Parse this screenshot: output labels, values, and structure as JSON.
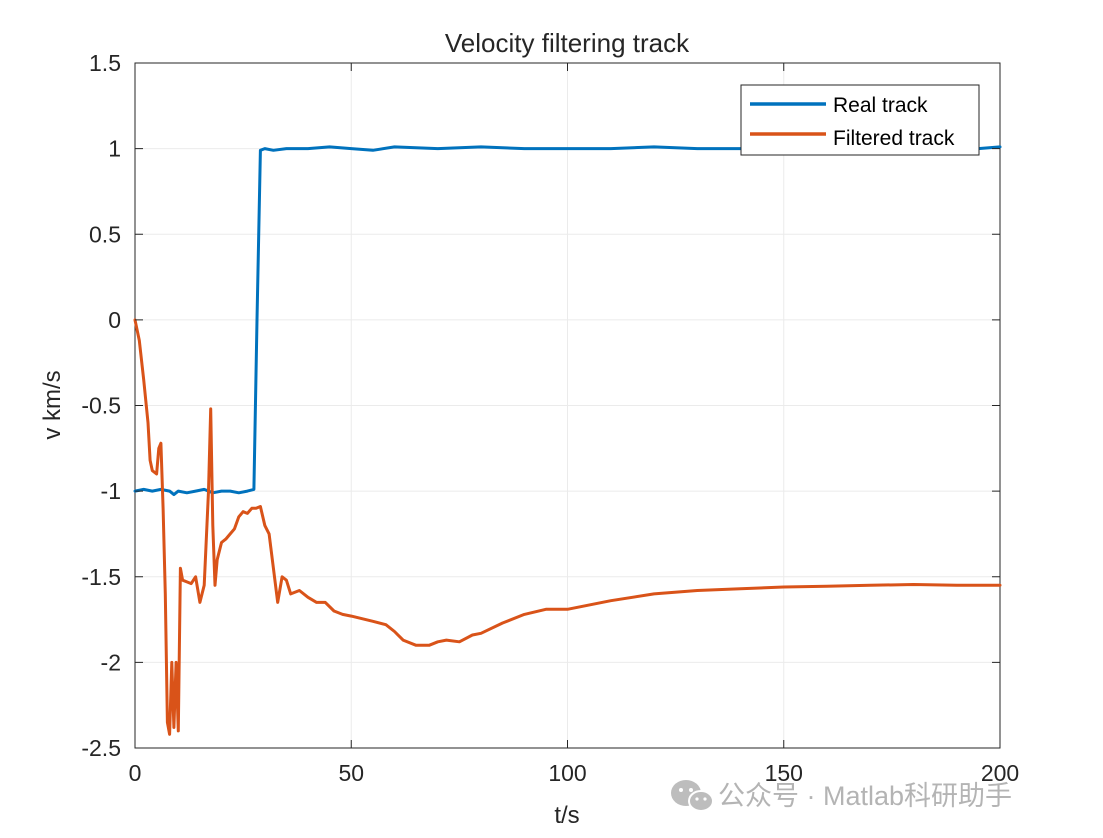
{
  "chart_data": {
    "type": "line",
    "title": "Velocity filtering track",
    "xlabel": "t/s",
    "ylabel": "v km/s",
    "xlim": [
      0,
      200
    ],
    "ylim": [
      -2.5,
      1.5
    ],
    "xticks": [
      0,
      50,
      100,
      150,
      200
    ],
    "xtick_labels": [
      "0",
      "50",
      "100",
      "150",
      "200"
    ],
    "yticks": [
      -2.5,
      -2,
      -1.5,
      -1,
      -0.5,
      0,
      0.5,
      1,
      1.5
    ],
    "ytick_labels": [
      "-2.5",
      "-2",
      "-1.5",
      "-1",
      "-0.5",
      "0",
      "0.5",
      "1",
      "1.5"
    ],
    "grid": true,
    "legend_position": "top-right",
    "series": [
      {
        "name": "Real track",
        "color": "#0072BD",
        "x": [
          0,
          2,
          4,
          6,
          8,
          9,
          10,
          12,
          14,
          16,
          18,
          20,
          22,
          24,
          26,
          27.5,
          28.2,
          29,
          30,
          32,
          35,
          40,
          45,
          50,
          55,
          60,
          70,
          80,
          90,
          100,
          110,
          120,
          130,
          140,
          150,
          160,
          170,
          180,
          190,
          195,
          200
        ],
        "y": [
          -1.0,
          -0.99,
          -1.0,
          -0.99,
          -1.0,
          -1.02,
          -1.0,
          -1.01,
          -1.0,
          -0.99,
          -1.01,
          -1.0,
          -1.0,
          -1.01,
          -1.0,
          -0.99,
          0.0,
          0.99,
          1.0,
          0.99,
          1.0,
          1.0,
          1.01,
          1.0,
          0.99,
          1.01,
          1.0,
          1.01,
          1.0,
          1.0,
          1.0,
          1.01,
          1.0,
          1.0,
          1.0,
          1.0,
          1.01,
          1.0,
          1.0,
          1.0,
          1.01
        ]
      },
      {
        "name": "Filtered track",
        "color": "#D95319",
        "x": [
          0,
          1,
          2,
          3,
          3.5,
          4,
          5,
          5.5,
          6,
          6.5,
          7,
          7.5,
          8,
          8.5,
          9,
          9.5,
          10,
          10.5,
          11,
          12,
          13,
          14,
          15,
          16,
          17,
          17.5,
          18,
          18.5,
          19,
          20,
          21,
          22,
          23,
          24,
          25,
          26,
          27,
          28,
          29,
          30,
          31,
          32,
          33,
          34,
          35,
          36,
          38,
          40,
          42,
          44,
          46,
          48,
          50,
          55,
          58,
          60,
          62,
          65,
          68,
          70,
          72,
          75,
          78,
          80,
          85,
          90,
          95,
          100,
          110,
          120,
          130,
          140,
          150,
          160,
          170,
          180,
          190,
          200
        ],
        "y": [
          0.0,
          -0.12,
          -0.35,
          -0.6,
          -0.82,
          -0.88,
          -0.9,
          -0.75,
          -0.72,
          -1.1,
          -1.6,
          -2.35,
          -2.42,
          -2.0,
          -2.38,
          -2.0,
          -2.4,
          -1.45,
          -1.52,
          -1.53,
          -1.54,
          -1.5,
          -1.65,
          -1.55,
          -1.0,
          -0.52,
          -1.2,
          -1.55,
          -1.4,
          -1.3,
          -1.28,
          -1.25,
          -1.22,
          -1.15,
          -1.12,
          -1.13,
          -1.1,
          -1.1,
          -1.09,
          -1.2,
          -1.25,
          -1.45,
          -1.65,
          -1.5,
          -1.52,
          -1.6,
          -1.58,
          -1.62,
          -1.65,
          -1.65,
          -1.7,
          -1.72,
          -1.73,
          -1.76,
          -1.78,
          -1.82,
          -1.87,
          -1.9,
          -1.9,
          -1.88,
          -1.87,
          -1.88,
          -1.84,
          -1.83,
          -1.77,
          -1.72,
          -1.69,
          -1.69,
          -1.64,
          -1.6,
          -1.58,
          -1.57,
          -1.56,
          -1.555,
          -1.55,
          -1.545,
          -1.55,
          -1.55
        ]
      }
    ]
  },
  "watermark": {
    "text": "公众号 · Matlab科研助手",
    "icon": "wechat-icon"
  }
}
